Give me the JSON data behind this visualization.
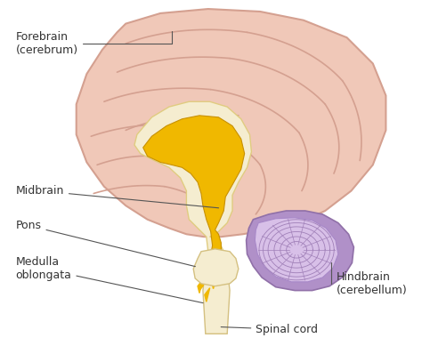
{
  "bg_color": "#ffffff",
  "cerebrum_fill": "#f0c8b8",
  "cerebrum_edge": "#d4a090",
  "cerebrum_fold_color": "#d4a090",
  "inner_brain_fill": "#f5edd0",
  "inner_brain_edge": "#e0cc80",
  "midbrain_golden_fill": "#f0b800",
  "midbrain_golden_edge": "#c89000",
  "brainstem_fill": "#f5edd0",
  "brainstem_edge": "#d4c080",
  "hindbrain_outer_fill": "#b090c8",
  "hindbrain_outer_edge": "#9070a8",
  "hindbrain_inner_fill": "#d8c0e8",
  "hindbrain_inner_edge": "#a888c8",
  "hindbrain_fold_color": "#a080b8",
  "label_color": "#333333",
  "line_color": "#555555",
  "fontsize": 9,
  "labels": {
    "forebrain": "Forebrain\n(cerebrum)",
    "midbrain": "Midbrain",
    "pons": "Pons",
    "medulla": "Medulla\noblongata",
    "hindbrain": "Hindbrain\n(cerebellum)",
    "spinal": "Spinal cord"
  }
}
